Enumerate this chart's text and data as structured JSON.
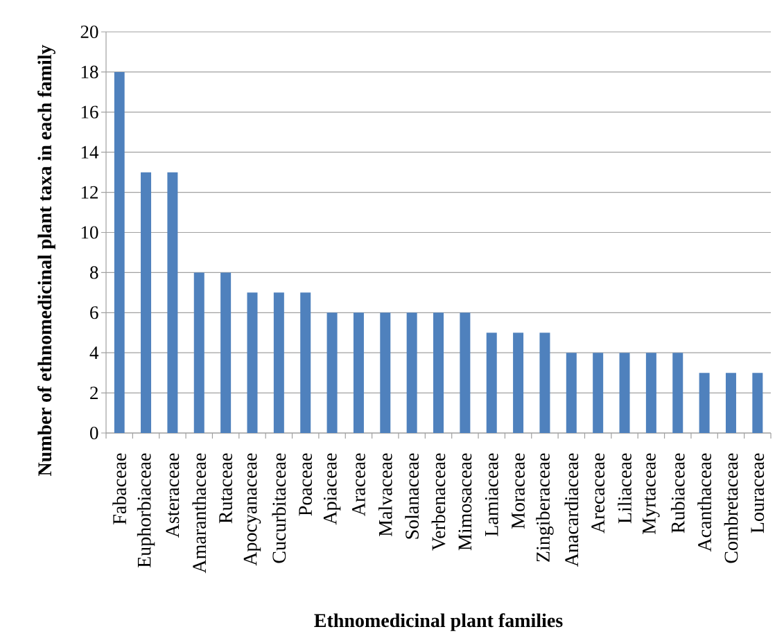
{
  "chart_data": {
    "type": "bar",
    "xlabel": "Ethnomedicinal plant families",
    "ylabel": "Number of ethnomedicinal plant taxa in each family",
    "categories": [
      "Fabaceae",
      "Euphorbiaceae",
      "Asteraceae",
      "Amaranthaceae",
      "Rutaceae",
      "Apocyanaceae",
      "Cucurbitaceae",
      "Poaceae",
      "Apiaceae",
      "Araceae",
      "Malvaceae",
      "Solanaceae",
      "Verbenaceae",
      "Mimosaceae",
      "Lamiaceae",
      "Moraceae",
      "Zingiberaceae",
      "Anacardiaceae",
      "Arecaceae",
      "Liliaceae",
      "Myrtaceae",
      "Rubiaceae",
      "Acanthaceae",
      "Combretaceae",
      "Louraceae"
    ],
    "values": [
      18,
      13,
      13,
      8,
      8,
      7,
      7,
      7,
      6,
      6,
      6,
      6,
      6,
      6,
      5,
      5,
      5,
      4,
      4,
      4,
      4,
      4,
      3,
      3,
      3
    ],
    "color": "#4f81bd",
    "ylim": [
      0,
      20
    ],
    "yticks": [
      0,
      2,
      4,
      6,
      8,
      10,
      12,
      14,
      16,
      18,
      20
    ],
    "grid": "y"
  }
}
